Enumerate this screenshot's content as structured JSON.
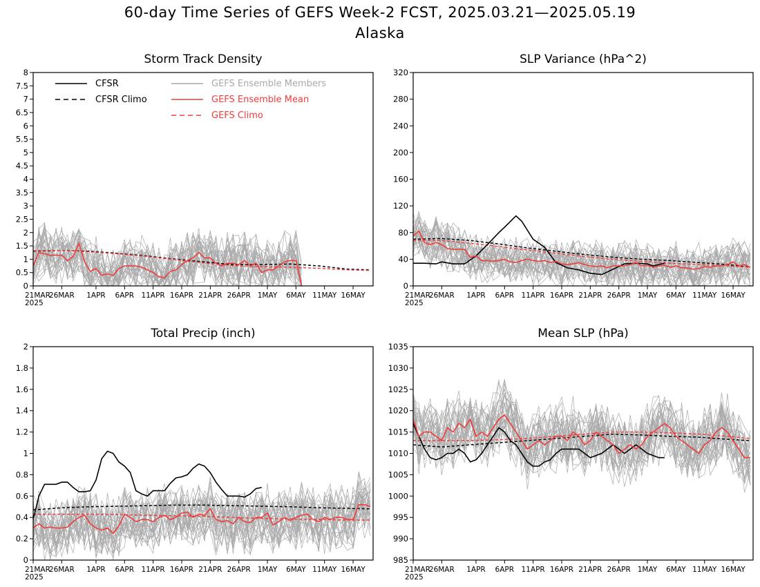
{
  "figure": {
    "title": "60-day Time Series of GEFS Week-2 FCST, 2025.03.21—2025.05.19",
    "subtitle": "Alaska"
  },
  "colors": {
    "cfsr": "#000000",
    "members": "#a9a9a9",
    "ens_mean": "#f03c3c",
    "gefs_climo": "#f03c3c",
    "legend_members_text": "#a9a9a9",
    "legend_red_text": "#f03c3c"
  },
  "legend": {
    "cfsr": "CFSR",
    "cfsr_climo": "CFSR Climo",
    "members": "GEFS Ensemble Members",
    "ens_mean": "GEFS Ensemble Mean",
    "gefs_climo": "GEFS Climo"
  },
  "date_ticks": [
    "21MAR",
    "26MAR",
    "1APR",
    "6APR",
    "11APR",
    "16APR",
    "21APR",
    "26APR",
    "1MAY",
    "6MAY",
    "11MAY",
    "16MAY"
  ],
  "year_label": "2025",
  "chart_data": [
    {
      "type": "line",
      "title": "Storm Track Density",
      "x_unit": "days since 21MAR2025",
      "ylim": [
        0,
        8
      ],
      "yticks": [
        "0",
        "0.5",
        "1",
        "1.5",
        "2",
        "2.5",
        "3",
        "3.5",
        "4",
        "4.5",
        "5",
        "5.5",
        "6",
        "6.5",
        "7",
        "7.5",
        "8"
      ],
      "legend_inside": true,
      "members": {
        "mean": 1.25,
        "spread": 0.9,
        "days": 48,
        "seed": 11
      },
      "series": [
        {
          "name": "GEFS Ensemble Mean",
          "style": "red-solid",
          "x": [
            0,
            1,
            2,
            3,
            4,
            5,
            6,
            7,
            8,
            9,
            10,
            11,
            12,
            13,
            14,
            15,
            16,
            17,
            18,
            19,
            20,
            21,
            22,
            23,
            24,
            25,
            26,
            27,
            28,
            29,
            30,
            31,
            32,
            33,
            34,
            35,
            36,
            37,
            38,
            39,
            40,
            41,
            42,
            43,
            44,
            45,
            46,
            47
          ],
          "values": [
            0.75,
            1.25,
            1.2,
            1.15,
            1.15,
            1.15,
            0.95,
            1.1,
            1.6,
            0.9,
            0.55,
            0.65,
            0.4,
            0.45,
            0.4,
            0.65,
            0.75,
            0.75,
            0.75,
            0.7,
            0.6,
            0.5,
            0.35,
            0.3,
            0.55,
            0.6,
            0.8,
            0.95,
            1.05,
            1.25,
            1.05,
            1.05,
            0.85,
            0.75,
            0.85,
            0.85,
            0.8,
            0.95,
            0.75,
            0.85,
            0.5,
            0.6,
            0.6,
            0.75,
            0.9,
            0.95,
            0.95,
            0.0
          ]
        },
        {
          "name": "CFSR Climo",
          "style": "black-dashed",
          "x": [
            0,
            5,
            10,
            15,
            20,
            25,
            30,
            35,
            40,
            45,
            50,
            55,
            59
          ],
          "values": [
            1.3,
            1.33,
            1.3,
            1.22,
            1.12,
            1.0,
            0.9,
            0.8,
            0.8,
            0.82,
            0.75,
            0.63,
            0.6
          ]
        },
        {
          "name": "GEFS Climo",
          "style": "red-dashed",
          "x": [
            0,
            5,
            10,
            15,
            20,
            25,
            30,
            35,
            40,
            45,
            50,
            55,
            59
          ],
          "values": [
            1.32,
            1.33,
            1.28,
            1.2,
            1.1,
            0.98,
            0.86,
            0.76,
            0.72,
            0.7,
            0.66,
            0.6,
            0.58
          ]
        }
      ]
    },
    {
      "type": "line",
      "title": "SLP Variance (hPa^2)",
      "x_unit": "days since 21MAR2025",
      "ylim": [
        0,
        320
      ],
      "yticks": [
        "0",
        "40",
        "80",
        "120",
        "160",
        "200",
        "240",
        "280",
        "320"
      ],
      "legend_inside": false,
      "members": {
        "mean": 45,
        "spread": 30,
        "days": 60,
        "seed": 23
      },
      "series": [
        {
          "name": "CFSR",
          "style": "black-solid",
          "x": [
            0,
            2,
            4,
            5,
            7,
            9,
            11,
            13,
            15,
            16,
            18,
            19,
            21,
            23,
            25,
            27,
            29,
            31,
            33,
            35,
            37,
            39,
            41,
            42,
            44
          ],
          "values": [
            34,
            34,
            33,
            36,
            33,
            33,
            45,
            62,
            80,
            88,
            105,
            97,
            70,
            58,
            35,
            27,
            24,
            19,
            17,
            25,
            33,
            34,
            33,
            30,
            34
          ]
        },
        {
          "name": "GEFS Ensemble Mean",
          "style": "red-solid",
          "x": [
            0,
            1,
            2,
            3,
            4,
            5,
            6,
            7,
            8,
            9,
            10,
            11,
            12,
            13,
            14,
            15,
            16,
            17,
            18,
            19,
            20,
            21,
            22,
            23,
            24,
            25,
            26,
            27,
            28,
            29,
            30,
            31,
            32,
            33,
            34,
            35,
            36,
            37,
            38,
            39,
            40,
            41,
            42,
            43,
            44,
            45,
            46,
            47,
            48,
            49,
            50,
            51,
            52,
            53,
            54,
            55,
            56,
            57,
            58,
            59
          ],
          "values": [
            75,
            82,
            65,
            62,
            65,
            62,
            56,
            55,
            55,
            55,
            43,
            45,
            38,
            38,
            37,
            38,
            40,
            36,
            35,
            38,
            40,
            38,
            37,
            38,
            35,
            37,
            33,
            32,
            33,
            35,
            32,
            30,
            29,
            30,
            27,
            30,
            30,
            30,
            32,
            35,
            30,
            31,
            28,
            30,
            31,
            28,
            30,
            27,
            27,
            25,
            26,
            29,
            28,
            30,
            30,
            32,
            36,
            30,
            32,
            28
          ]
        },
        {
          "name": "CFSR Climo",
          "style": "black-dashed",
          "x": [
            0,
            5,
            10,
            15,
            20,
            25,
            30,
            35,
            40,
            45,
            50,
            55,
            59
          ],
          "values": [
            70,
            71,
            68,
            63,
            57,
            52,
            47,
            43,
            40,
            38,
            35,
            32,
            28
          ]
        },
        {
          "name": "GEFS Climo",
          "style": "red-dashed",
          "x": [
            0,
            5,
            10,
            15,
            20,
            25,
            30,
            35,
            40,
            45,
            50,
            55,
            59
          ],
          "values": [
            68,
            68,
            64,
            59,
            54,
            49,
            44,
            40,
            37,
            34,
            32,
            30,
            28
          ]
        }
      ]
    },
    {
      "type": "line",
      "title": "Total Precip (inch)",
      "x_unit": "days since 21MAR2025",
      "ylim": [
        0,
        2
      ],
      "yticks": [
        "0",
        "0.2",
        "0.4",
        "0.6",
        "0.8",
        "1",
        "1.2",
        "1.4",
        "1.6",
        "1.8",
        "2"
      ],
      "legend_inside": false,
      "members": {
        "mean": 0.4,
        "spread": 0.25,
        "days": 60,
        "seed": 37
      },
      "series": [
        {
          "name": "CFSR",
          "style": "black-solid",
          "x": [
            0,
            1,
            2,
            3,
            4,
            5,
            6,
            7,
            8,
            9,
            10,
            11,
            12,
            13,
            14,
            15,
            16,
            17,
            18,
            19,
            20,
            21,
            22,
            23,
            24,
            25,
            26,
            27,
            28,
            29,
            30,
            31,
            32,
            33,
            34,
            35,
            36,
            37,
            38,
            39,
            40
          ],
          "values": [
            0.38,
            0.6,
            0.71,
            0.71,
            0.71,
            0.73,
            0.73,
            0.68,
            0.64,
            0.64,
            0.65,
            0.75,
            0.95,
            1.02,
            1.0,
            0.92,
            0.88,
            0.82,
            0.65,
            0.62,
            0.6,
            0.65,
            0.65,
            0.65,
            0.72,
            0.77,
            0.78,
            0.8,
            0.86,
            0.9,
            0.88,
            0.82,
            0.73,
            0.66,
            0.6,
            0.6,
            0.6,
            0.59,
            0.62,
            0.67,
            0.68
          ]
        },
        {
          "name": "GEFS Ensemble Mean",
          "style": "red-solid",
          "x": [
            0,
            1,
            2,
            3,
            4,
            5,
            6,
            7,
            8,
            9,
            10,
            11,
            12,
            13,
            14,
            15,
            16,
            17,
            18,
            19,
            20,
            21,
            22,
            23,
            24,
            25,
            26,
            27,
            28,
            29,
            30,
            31,
            32,
            33,
            34,
            35,
            36,
            37,
            38,
            39,
            40,
            41,
            42,
            43,
            44,
            45,
            46,
            47,
            48,
            49,
            50,
            51,
            52,
            53,
            54,
            55,
            56,
            57,
            58,
            59
          ],
          "values": [
            0.3,
            0.34,
            0.3,
            0.31,
            0.3,
            0.3,
            0.31,
            0.36,
            0.4,
            0.42,
            0.34,
            0.3,
            0.28,
            0.3,
            0.25,
            0.32,
            0.43,
            0.4,
            0.36,
            0.38,
            0.38,
            0.36,
            0.4,
            0.42,
            0.38,
            0.4,
            0.44,
            0.45,
            0.4,
            0.43,
            0.42,
            0.48,
            0.38,
            0.36,
            0.37,
            0.34,
            0.4,
            0.36,
            0.35,
            0.4,
            0.4,
            0.44,
            0.33,
            0.36,
            0.4,
            0.37,
            0.4,
            0.42,
            0.43,
            0.38,
            0.36,
            0.4,
            0.38,
            0.4,
            0.4,
            0.38,
            0.38,
            0.52,
            0.52,
            0.5
          ]
        },
        {
          "name": "CFSR Climo",
          "style": "black-dashed",
          "x": [
            0,
            5,
            10,
            15,
            20,
            25,
            30,
            35,
            40,
            45,
            50,
            55,
            59
          ],
          "values": [
            0.47,
            0.49,
            0.5,
            0.505,
            0.51,
            0.515,
            0.515,
            0.51,
            0.505,
            0.5,
            0.49,
            0.485,
            0.48
          ]
        },
        {
          "name": "GEFS Climo",
          "style": "red-dashed",
          "x": [
            0,
            5,
            10,
            15,
            20,
            25,
            30,
            35,
            40,
            45,
            50,
            55,
            59
          ],
          "values": [
            0.43,
            0.43,
            0.43,
            0.425,
            0.42,
            0.415,
            0.41,
            0.4,
            0.39,
            0.385,
            0.38,
            0.375,
            0.375
          ]
        }
      ]
    },
    {
      "type": "line",
      "title": "Mean SLP (hPa)",
      "x_unit": "days since 21MAR2025",
      "ylim": [
        985,
        1035
      ],
      "yticks": [
        "985",
        "990",
        "995",
        "1000",
        "1005",
        "1010",
        "1015",
        "1020",
        "1025",
        "1030",
        "1035"
      ],
      "legend_inside": false,
      "members": {
        "mean": 1014,
        "spread": 7,
        "days": 60,
        "seed": 53
      },
      "series": [
        {
          "name": "CFSR",
          "style": "black-solid",
          "x": [
            0,
            1,
            2,
            3,
            4,
            5,
            6,
            7,
            8,
            9,
            10,
            11,
            12,
            13,
            14,
            15,
            16,
            17,
            18,
            19,
            20,
            21,
            22,
            23,
            24,
            25,
            26,
            27,
            28,
            29,
            30,
            31,
            32,
            33,
            34,
            35,
            36,
            37,
            38,
            39,
            40,
            41,
            42,
            43,
            44
          ],
          "values": [
            1017,
            1014,
            1011,
            1009,
            1008.5,
            1009,
            1010,
            1010,
            1011,
            1010,
            1008,
            1008.5,
            1010,
            1012,
            1014,
            1016,
            1015,
            1013,
            1012,
            1010,
            1008,
            1007,
            1007,
            1008,
            1008.5,
            1010,
            1011,
            1011,
            1011,
            1011,
            1010,
            1009,
            1009.5,
            1010,
            1011,
            1012,
            1011,
            1010,
            1011,
            1012,
            1011,
            1010,
            1009.5,
            1009,
            1009
          ]
        },
        {
          "name": "GEFS Ensemble Mean",
          "style": "red-solid",
          "x": [
            0,
            1,
            2,
            3,
            4,
            5,
            6,
            7,
            8,
            9,
            10,
            11,
            12,
            13,
            14,
            15,
            16,
            17,
            18,
            19,
            20,
            21,
            22,
            23,
            24,
            25,
            26,
            27,
            28,
            29,
            30,
            31,
            32,
            33,
            34,
            35,
            36,
            37,
            38,
            39,
            40,
            41,
            42,
            43,
            44,
            45,
            46,
            47,
            48,
            49,
            50,
            51,
            52,
            53,
            54,
            55,
            56,
            57,
            58,
            59
          ],
          "values": [
            1018,
            1014,
            1015,
            1015,
            1014,
            1013,
            1016,
            1015,
            1017,
            1016,
            1018,
            1014,
            1015,
            1014,
            1016,
            1018,
            1019,
            1017,
            1015,
            1013,
            1011,
            1012,
            1013,
            1012,
            1013,
            1014,
            1014,
            1013,
            1015,
            1014,
            1012,
            1013,
            1015,
            1014,
            1013,
            1012,
            1010,
            1011,
            1012,
            1011,
            1012,
            1014,
            1015,
            1016,
            1017,
            1016,
            1014,
            1013,
            1012,
            1011,
            1010,
            1012,
            1013,
            1015,
            1016,
            1015,
            1013,
            1011,
            1009,
            1009
          ]
        },
        {
          "name": "CFSR Climo",
          "style": "black-dashed",
          "x": [
            0,
            5,
            10,
            15,
            20,
            25,
            30,
            35,
            40,
            45,
            50,
            55,
            59
          ],
          "values": [
            1012,
            1011.5,
            1012,
            1012.5,
            1013,
            1013.5,
            1014,
            1014.5,
            1014.3,
            1014,
            1013.8,
            1013.3,
            1013
          ]
        },
        {
          "name": "GEFS Climo",
          "style": "red-dashed",
          "x": [
            0,
            5,
            10,
            15,
            20,
            25,
            30,
            35,
            40,
            45,
            50,
            55,
            59
          ],
          "values": [
            1013,
            1013,
            1013,
            1013.2,
            1013.5,
            1014,
            1014.5,
            1015,
            1015,
            1014.8,
            1014.5,
            1014,
            1013.5
          ]
        }
      ]
    }
  ]
}
